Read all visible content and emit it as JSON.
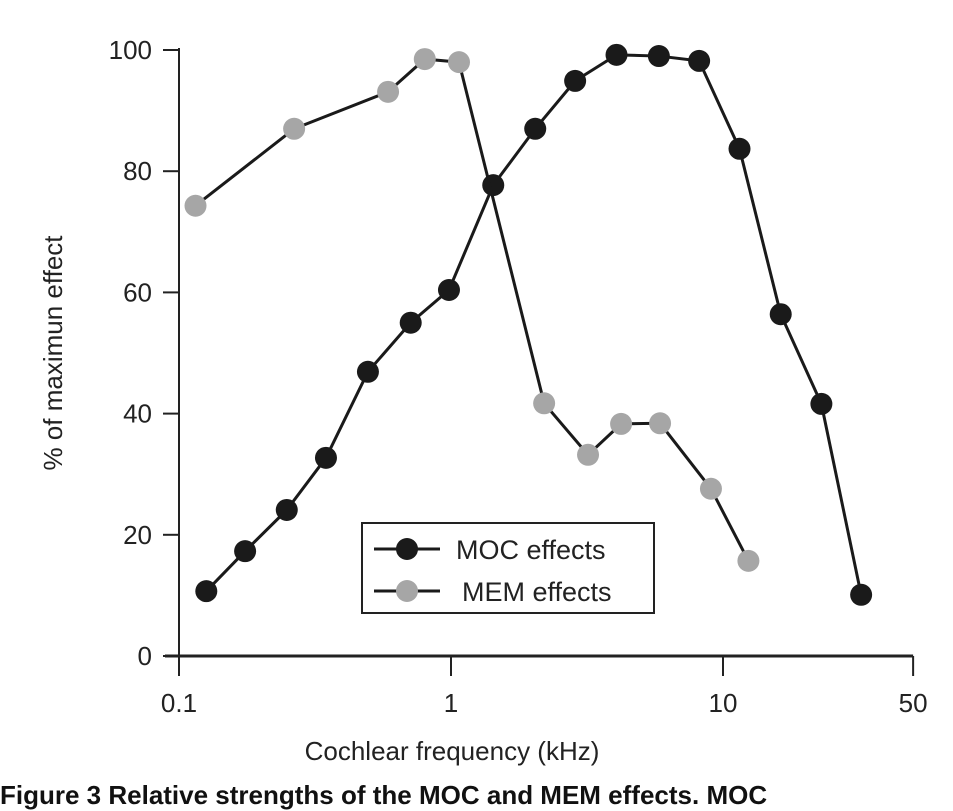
{
  "chart_data": {
    "type": "line",
    "xlabel": "Cochlear frequency (kHz)",
    "ylabel": "% of maximun effect",
    "xscale": "log",
    "xlim": [
      0.1,
      50
    ],
    "ylim": [
      0,
      100
    ],
    "xticks": [
      "0.1",
      "1",
      "10",
      "50"
    ],
    "yticks": [
      "0",
      "20",
      "40",
      "60",
      "80",
      "100"
    ],
    "grid": false,
    "legend_position": "bottom-center",
    "series": [
      {
        "name": "MOC effects",
        "color": "#1a1a1a",
        "x": [
          0.126,
          0.175,
          0.249,
          0.347,
          0.495,
          0.711,
          0.983,
          1.43,
          2.04,
          2.86,
          4.06,
          5.81,
          8.17,
          11.5,
          16.3,
          23.0,
          32.2
        ],
        "y": [
          10.7,
          17.3,
          24.1,
          32.7,
          46.9,
          55.0,
          60.4,
          77.7,
          87.0,
          94.9,
          99.2,
          99.0,
          98.2,
          83.7,
          56.4,
          41.6,
          10.1
        ]
      },
      {
        "name": "MEM effects",
        "color": "#a6a6a6",
        "x": [
          0.115,
          0.265,
          0.587,
          0.801,
          1.07,
          2.2,
          3.19,
          4.22,
          5.87,
          9.03,
          12.4
        ],
        "y": [
          74.3,
          87.0,
          93.1,
          98.5,
          98.0,
          41.7,
          33.2,
          38.3,
          38.4,
          27.6,
          15.7
        ]
      }
    ]
  },
  "caption": "Figure 3  Relative strengths of the MOC and MEM effects. MOC"
}
